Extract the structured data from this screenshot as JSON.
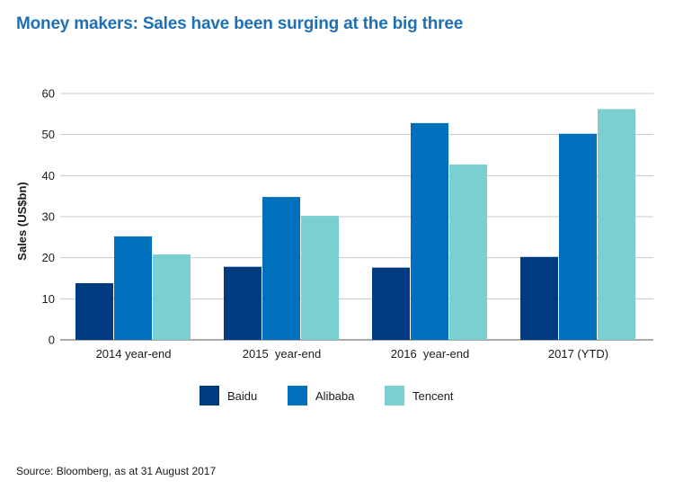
{
  "title": "Money makers: Sales have been surging at the big three",
  "source": "Source: Bloomberg, as at 31 August 2017",
  "chart_data": {
    "type": "bar",
    "title": "Money makers: Sales have been surging at the big three",
    "xlabel": "",
    "ylabel": "Sales (US$bn)",
    "ylim": [
      0,
      60
    ],
    "yticks": [
      0,
      10,
      20,
      30,
      40,
      50,
      60
    ],
    "grid": true,
    "legend_position": "bottom",
    "categories": [
      "2014 year-end",
      "2015  year-end",
      "2016  year-end",
      "2017 (YTD)"
    ],
    "series": [
      {
        "name": "Baidu",
        "color": "#003a80",
        "values": [
          13.8,
          17.8,
          17.6,
          20.2
        ]
      },
      {
        "name": "Alibaba",
        "color": "#0070bd",
        "values": [
          25.2,
          34.8,
          52.8,
          50.2
        ]
      },
      {
        "name": "Tencent",
        "color": "#7bcfd0",
        "values": [
          20.8,
          30.2,
          42.7,
          56.2
        ]
      }
    ]
  }
}
